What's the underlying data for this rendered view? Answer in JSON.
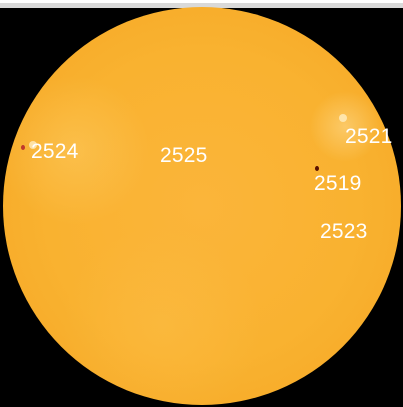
{
  "image": {
    "background_color": "#000000",
    "disk_color": "#f9b230",
    "label_color": "#ffffff"
  },
  "regions": [
    {
      "label": "2524"
    },
    {
      "label": "2525"
    },
    {
      "label": "2521"
    },
    {
      "label": "2519"
    },
    {
      "label": "2523"
    }
  ]
}
